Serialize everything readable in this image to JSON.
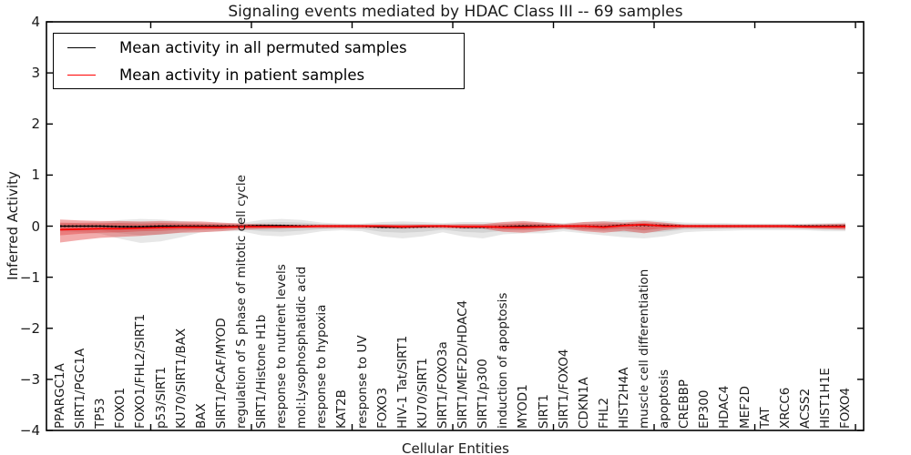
{
  "chart_data": {
    "type": "line",
    "title": "Signaling events mediated by HDAC Class III -- 69 samples",
    "xlabel": "Cellular Entities",
    "ylabel": "Inferred Activity",
    "ylim": [
      -4,
      4
    ],
    "yticks": [
      -4,
      -3,
      -2,
      -1,
      0,
      1,
      2,
      3,
      4
    ],
    "grid": false,
    "legend_position": "upper left",
    "categories": [
      "PPARGC1A",
      "SIRT1/PGC1A",
      "TP53",
      "FOXO1",
      "FOXO1/FHL2/SIRT1",
      "p53/SIRT1",
      "KU70/SIRT1/BAX",
      "BAX",
      "SIRT1/PCAF/MYOD",
      "regulation of S phase of mitotic cell cycle",
      "SIRT1/Histone H1b",
      "response to nutrient levels",
      "mol:Lysophosphatidic acid",
      "response to hypoxia",
      "KAT2B",
      "response to UV",
      "FOXO3",
      "HIV-1 Tat/SIRT1",
      "KU70/SIRT1",
      "SIRT1/FOXO3a",
      "SIRT1/MEF2D/HDAC4",
      "SIRT1/p300",
      "induction of apoptosis",
      "MYOD1",
      "SIRT1",
      "SIRT1/FOXO4",
      "CDKN1A",
      "FHL2",
      "HIST2H4A",
      "muscle cell differentiation",
      "apoptosis",
      "CREBBP",
      "EP300",
      "HDAC4",
      "MEF2D",
      "TAT",
      "XRCC6",
      "ACSS2",
      "HIST1H1E",
      "FOXO4"
    ],
    "series": [
      {
        "name": "Mean activity in all permuted samples",
        "color": "#000000",
        "style": "solid-with-dots",
        "values": [
          0.0,
          0.0,
          0.0,
          -0.01,
          -0.01,
          0.0,
          0.0,
          0.0,
          0.0,
          0.0,
          0.01,
          0.01,
          0.0,
          0.0,
          0.0,
          0.0,
          -0.02,
          -0.02,
          -0.01,
          0.0,
          -0.02,
          -0.02,
          -0.01,
          0.0,
          0.0,
          0.0,
          0.0,
          -0.01,
          0.02,
          0.02,
          0.01,
          0.0,
          0.0,
          0.0,
          0.0,
          0.0,
          0.0,
          0.0,
          0.0,
          0.0
        ]
      },
      {
        "name": "Mean activity in patient samples",
        "color": "#ff0000",
        "style": "solid",
        "values": [
          -0.07,
          -0.06,
          -0.05,
          -0.05,
          -0.04,
          -0.03,
          -0.02,
          -0.02,
          -0.02,
          -0.01,
          -0.01,
          -0.01,
          -0.01,
          0.0,
          0.0,
          0.0,
          0.0,
          -0.01,
          0.0,
          0.0,
          -0.01,
          -0.01,
          -0.02,
          -0.02,
          -0.01,
          0.0,
          0.0,
          -0.02,
          0.01,
          0.03,
          0.0,
          0.0,
          0.0,
          0.0,
          0.0,
          0.0,
          0.0,
          -0.01,
          -0.01,
          -0.01
        ]
      }
    ],
    "bands": [
      {
        "name": "permuted-samples-spread-outer",
        "color": "#888888",
        "opacity": 0.2,
        "upper": [
          0.06,
          0.07,
          0.08,
          0.12,
          0.14,
          0.13,
          0.1,
          0.07,
          0.06,
          0.06,
          0.12,
          0.14,
          0.12,
          0.07,
          0.05,
          0.05,
          0.08,
          0.09,
          0.08,
          0.06,
          0.08,
          0.08,
          0.07,
          0.08,
          0.07,
          0.06,
          0.08,
          0.1,
          0.12,
          0.12,
          0.1,
          0.07,
          0.06,
          0.06,
          0.05,
          0.05,
          0.05,
          0.05,
          0.06,
          0.07
        ],
        "lower": [
          -0.1,
          -0.12,
          -0.15,
          -0.25,
          -0.33,
          -0.3,
          -0.22,
          -0.12,
          -0.1,
          -0.1,
          -0.18,
          -0.2,
          -0.16,
          -0.1,
          -0.08,
          -0.1,
          -0.2,
          -0.24,
          -0.2,
          -0.12,
          -0.2,
          -0.24,
          -0.16,
          -0.14,
          -0.14,
          -0.1,
          -0.14,
          -0.18,
          -0.22,
          -0.24,
          -0.2,
          -0.12,
          -0.1,
          -0.09,
          -0.08,
          -0.08,
          -0.08,
          -0.08,
          -0.1,
          -0.1
        ]
      },
      {
        "name": "permuted-samples-spread-inner",
        "color": "#888888",
        "opacity": 0.2,
        "upper": [
          0.03,
          0.04,
          0.04,
          0.07,
          0.08,
          0.07,
          0.06,
          0.04,
          0.03,
          0.03,
          0.07,
          0.08,
          0.07,
          0.04,
          0.03,
          0.03,
          0.04,
          0.05,
          0.04,
          0.03,
          0.04,
          0.04,
          0.04,
          0.04,
          0.04,
          0.03,
          0.04,
          0.06,
          0.07,
          0.07,
          0.06,
          0.04,
          0.03,
          0.03,
          0.03,
          0.03,
          0.03,
          0.03,
          0.03,
          0.04
        ],
        "lower": [
          -0.06,
          -0.07,
          -0.08,
          -0.14,
          -0.18,
          -0.17,
          -0.12,
          -0.07,
          -0.06,
          -0.06,
          -0.1,
          -0.11,
          -0.09,
          -0.06,
          -0.04,
          -0.06,
          -0.11,
          -0.13,
          -0.11,
          -0.07,
          -0.11,
          -0.13,
          -0.09,
          -0.08,
          -0.08,
          -0.06,
          -0.08,
          -0.1,
          -0.12,
          -0.13,
          -0.11,
          -0.07,
          -0.06,
          -0.05,
          -0.04,
          -0.04,
          -0.04,
          -0.04,
          -0.06,
          -0.06
        ]
      },
      {
        "name": "patient-samples-spread-outer",
        "color": "#dd2222",
        "opacity": 0.38,
        "upper": [
          0.13,
          0.11,
          0.1,
          0.1,
          0.09,
          0.1,
          0.09,
          0.09,
          0.07,
          0.05,
          0.04,
          0.03,
          0.03,
          0.03,
          0.03,
          0.03,
          0.03,
          0.03,
          0.03,
          0.03,
          0.04,
          0.04,
          0.08,
          0.1,
          0.07,
          0.04,
          0.08,
          0.09,
          0.07,
          0.1,
          0.07,
          0.03,
          0.03,
          0.03,
          0.03,
          0.03,
          0.03,
          0.03,
          0.04,
          0.05
        ],
        "lower": [
          -0.32,
          -0.27,
          -0.23,
          -0.21,
          -0.19,
          -0.16,
          -0.13,
          -0.12,
          -0.1,
          -0.07,
          -0.06,
          -0.05,
          -0.04,
          -0.04,
          -0.04,
          -0.04,
          -0.04,
          -0.05,
          -0.04,
          -0.04,
          -0.05,
          -0.05,
          -0.11,
          -0.13,
          -0.09,
          -0.05,
          -0.1,
          -0.13,
          -0.09,
          -0.14,
          -0.08,
          -0.04,
          -0.04,
          -0.04,
          -0.04,
          -0.04,
          -0.04,
          -0.05,
          -0.06,
          -0.07
        ]
      },
      {
        "name": "patient-samples-spread-inner",
        "color": "#dd2222",
        "opacity": 0.33,
        "upper": [
          0.07,
          0.06,
          0.06,
          0.06,
          0.05,
          0.06,
          0.05,
          0.05,
          0.04,
          0.03,
          0.02,
          0.02,
          0.02,
          0.02,
          0.02,
          0.02,
          0.02,
          0.02,
          0.02,
          0.02,
          0.02,
          0.02,
          0.04,
          0.06,
          0.04,
          0.02,
          0.04,
          0.05,
          0.04,
          0.06,
          0.04,
          0.02,
          0.02,
          0.02,
          0.02,
          0.02,
          0.02,
          0.02,
          0.02,
          0.03
        ],
        "lower": [
          -0.18,
          -0.15,
          -0.13,
          -0.12,
          -0.1,
          -0.09,
          -0.07,
          -0.07,
          -0.06,
          -0.04,
          -0.03,
          -0.03,
          -0.02,
          -0.02,
          -0.02,
          -0.02,
          -0.02,
          -0.03,
          -0.02,
          -0.02,
          -0.03,
          -0.03,
          -0.06,
          -0.07,
          -0.05,
          -0.03,
          -0.06,
          -0.07,
          -0.05,
          -0.08,
          -0.04,
          -0.02,
          -0.02,
          -0.02,
          -0.02,
          -0.02,
          -0.02,
          -0.03,
          -0.03,
          -0.04
        ]
      }
    ]
  }
}
